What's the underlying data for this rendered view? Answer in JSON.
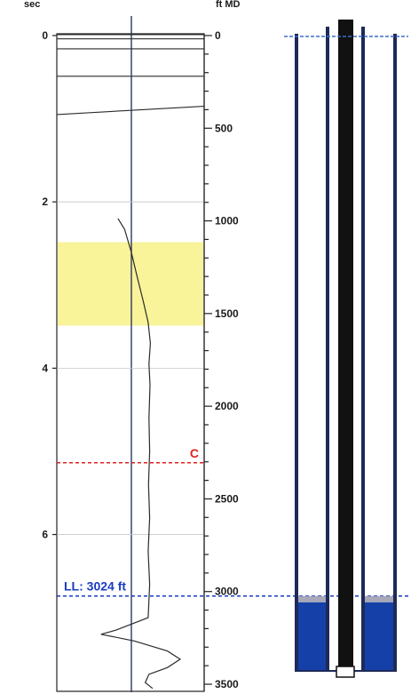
{
  "chart_data": {
    "type": "line",
    "title": "",
    "left_axis": {
      "unit": "sec",
      "ticks": [
        0,
        2,
        4,
        6
      ],
      "tick_labels": [
        "0",
        "2",
        "4",
        "6"
      ],
      "range": [
        0,
        7.8
      ]
    },
    "right_axis": {
      "unit": "ft MD",
      "ticks": [
        0,
        500,
        1000,
        1500,
        2000,
        2500,
        3000,
        3500
      ],
      "tick_labels": [
        "0",
        "500",
        "1000",
        "1500",
        "2000",
        "2500",
        "3000",
        "3500"
      ],
      "range": [
        0,
        3500
      ]
    },
    "highlight_zone": {
      "from_ft": 1115,
      "to_ft": 1565,
      "color": "#f9f39a"
    },
    "markers": [
      {
        "label": "C",
        "depth_ft": 2305,
        "color": "#e02020",
        "style": "dashed"
      },
      {
        "label": "LL: 3024 ft",
        "depth_ft": 3024,
        "color": "#1a3cc0",
        "style": "dashed"
      }
    ],
    "top_lines_sec": [
      0.0,
      0.05,
      0.17,
      0.5
    ],
    "curve_points": [
      [
        2.2,
        1.66
      ],
      [
        2.33,
        1.84
      ],
      [
        2.6,
        2.02
      ],
      [
        2.9,
        2.18
      ],
      [
        3.2,
        2.35
      ],
      [
        3.45,
        2.48
      ],
      [
        3.7,
        2.54
      ],
      [
        3.95,
        2.5
      ],
      [
        4.2,
        2.53
      ],
      [
        4.6,
        2.5
      ],
      [
        5.0,
        2.52
      ],
      [
        5.4,
        2.49
      ],
      [
        5.8,
        2.52
      ],
      [
        6.2,
        2.48
      ],
      [
        6.6,
        2.52
      ],
      [
        7.0,
        2.48
      ],
      [
        7.15,
        1.6
      ],
      [
        7.2,
        1.2
      ],
      [
        7.28,
        2.1
      ],
      [
        7.4,
        3.0
      ],
      [
        7.5,
        3.35
      ],
      [
        7.6,
        3.0
      ],
      [
        7.68,
        2.5
      ],
      [
        7.78,
        2.4
      ],
      [
        7.85,
        2.6
      ]
    ],
    "curve_x_note": "",
    "grid": true,
    "reference_line_color": "#1a2a5a"
  },
  "wellbore": {
    "casing_color": "#1e2a58",
    "tubing_color": "#111111",
    "fluid_top_ft": 3024,
    "fluid_color": "#1440a8",
    "gas_cap_color": "#a8a8b8",
    "surface_line_color": "#3a6ec8"
  }
}
